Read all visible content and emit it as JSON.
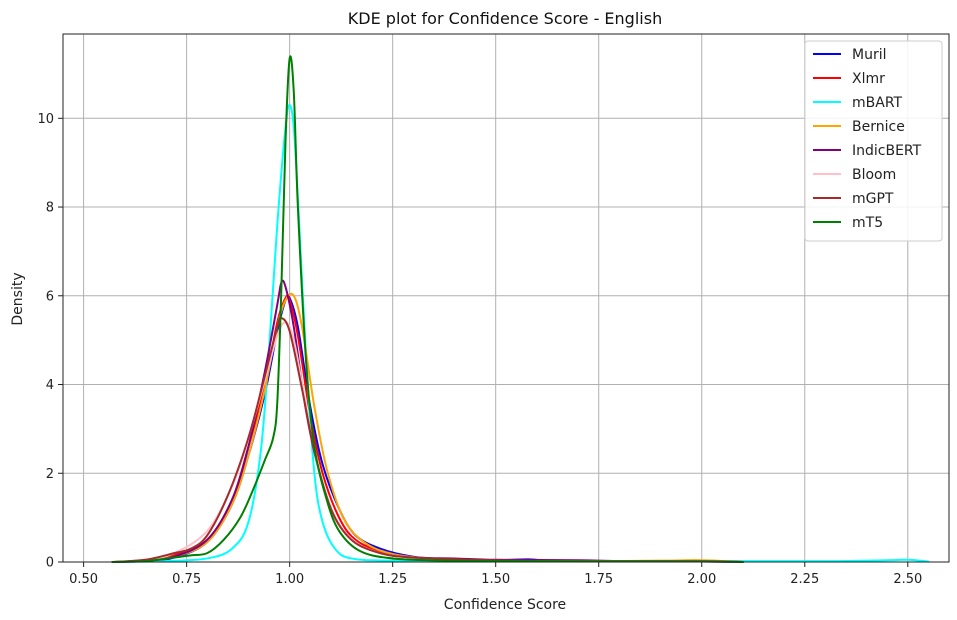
{
  "chart_data": {
    "type": "line",
    "title": "KDE plot for Confidence Score - English",
    "xlabel": "Confidence Score",
    "ylabel": "Density",
    "xlim": [
      0.45,
      2.6
    ],
    "ylim": [
      0,
      11.9
    ],
    "xticks": [
      "0.50",
      "0.75",
      "1.00",
      "1.25",
      "1.50",
      "1.75",
      "2.00",
      "2.25",
      "2.50"
    ],
    "yticks": [
      "0",
      "2",
      "4",
      "6",
      "8",
      "10"
    ],
    "grid": true,
    "legend_position": "top-right",
    "series": [
      {
        "name": "Muril",
        "color": "#0000ff",
        "points": [
          [
            0.57,
            0
          ],
          [
            0.65,
            0.02
          ],
          [
            0.72,
            0.1
          ],
          [
            0.8,
            0.45
          ],
          [
            0.86,
            1.3
          ],
          [
            0.9,
            2.4
          ],
          [
            0.94,
            3.8
          ],
          [
            0.97,
            5.2
          ],
          [
            0.99,
            5.9
          ],
          [
            1.0,
            5.95
          ],
          [
            1.02,
            5.3
          ],
          [
            1.05,
            3.5
          ],
          [
            1.08,
            2.2
          ],
          [
            1.12,
            1.2
          ],
          [
            1.16,
            0.6
          ],
          [
            1.22,
            0.3
          ],
          [
            1.3,
            0.12
          ],
          [
            1.4,
            0.06
          ],
          [
            1.5,
            0.04
          ],
          [
            1.58,
            0.06
          ],
          [
            1.65,
            0.02
          ],
          [
            1.8,
            0.02
          ],
          [
            2.0,
            0.01
          ],
          [
            2.1,
            0
          ]
        ]
      },
      {
        "name": "Xlmr",
        "color": "#ff0000",
        "points": [
          [
            0.57,
            0
          ],
          [
            0.65,
            0.04
          ],
          [
            0.72,
            0.15
          ],
          [
            0.8,
            0.5
          ],
          [
            0.86,
            1.4
          ],
          [
            0.9,
            2.6
          ],
          [
            0.94,
            4.0
          ],
          [
            0.97,
            5.4
          ],
          [
            0.99,
            5.95
          ],
          [
            1.0,
            5.9
          ],
          [
            1.02,
            5.1
          ],
          [
            1.05,
            3.3
          ],
          [
            1.08,
            2.0
          ],
          [
            1.12,
            1.0
          ],
          [
            1.16,
            0.5
          ],
          [
            1.22,
            0.25
          ],
          [
            1.3,
            0.1
          ],
          [
            1.4,
            0.05
          ],
          [
            1.5,
            0.03
          ],
          [
            1.6,
            0.02
          ],
          [
            1.8,
            0.02
          ],
          [
            2.0,
            0.02
          ],
          [
            2.1,
            0
          ]
        ]
      },
      {
        "name": "mBART",
        "color": "#00ffff",
        "points": [
          [
            0.57,
            0
          ],
          [
            0.7,
            0.02
          ],
          [
            0.8,
            0.08
          ],
          [
            0.86,
            0.3
          ],
          [
            0.9,
            0.9
          ],
          [
            0.93,
            2.5
          ],
          [
            0.95,
            4.8
          ],
          [
            0.97,
            7.6
          ],
          [
            0.99,
            9.8
          ],
          [
            1.0,
            10.3
          ],
          [
            1.01,
            9.8
          ],
          [
            1.02,
            8.2
          ],
          [
            1.04,
            4.6
          ],
          [
            1.06,
            2.0
          ],
          [
            1.08,
            0.9
          ],
          [
            1.11,
            0.3
          ],
          [
            1.15,
            0.08
          ],
          [
            1.25,
            0.03
          ],
          [
            1.5,
            0.02
          ],
          [
            2.0,
            0.02
          ],
          [
            2.3,
            0.02
          ],
          [
            2.45,
            0.04
          ],
          [
            2.5,
            0.05
          ],
          [
            2.55,
            0.01
          ]
        ]
      },
      {
        "name": "Bernice",
        "color": "#ffa500",
        "points": [
          [
            0.57,
            0
          ],
          [
            0.65,
            0.03
          ],
          [
            0.72,
            0.12
          ],
          [
            0.8,
            0.45
          ],
          [
            0.86,
            1.3
          ],
          [
            0.9,
            2.4
          ],
          [
            0.94,
            3.9
          ],
          [
            0.97,
            5.3
          ],
          [
            0.99,
            5.9
          ],
          [
            1.01,
            6.0
          ],
          [
            1.03,
            5.3
          ],
          [
            1.06,
            3.5
          ],
          [
            1.09,
            2.1
          ],
          [
            1.13,
            1.0
          ],
          [
            1.18,
            0.45
          ],
          [
            1.25,
            0.18
          ],
          [
            1.35,
            0.07
          ],
          [
            1.5,
            0.04
          ],
          [
            1.7,
            0.02
          ],
          [
            1.9,
            0.03
          ],
          [
            2.0,
            0.04
          ],
          [
            2.1,
            0
          ]
        ]
      },
      {
        "name": "IndicBERT",
        "color": "#800080",
        "points": [
          [
            0.57,
            0
          ],
          [
            0.65,
            0.03
          ],
          [
            0.72,
            0.12
          ],
          [
            0.8,
            0.5
          ],
          [
            0.86,
            1.4
          ],
          [
            0.9,
            2.6
          ],
          [
            0.94,
            4.3
          ],
          [
            0.97,
            5.8
          ],
          [
            0.98,
            6.3
          ],
          [
            0.99,
            6.2
          ],
          [
            1.01,
            5.3
          ],
          [
            1.04,
            3.4
          ],
          [
            1.07,
            2.1
          ],
          [
            1.11,
            1.0
          ],
          [
            1.16,
            0.45
          ],
          [
            1.22,
            0.2
          ],
          [
            1.3,
            0.1
          ],
          [
            1.4,
            0.08
          ],
          [
            1.5,
            0.05
          ],
          [
            1.7,
            0.04
          ],
          [
            1.8,
            0.02
          ],
          [
            2.0,
            0.02
          ],
          [
            2.1,
            0
          ]
        ]
      },
      {
        "name": "Bloom",
        "color": "#ffc0cb",
        "points": [
          [
            0.57,
            0
          ],
          [
            0.65,
            0.05
          ],
          [
            0.72,
            0.2
          ],
          [
            0.8,
            0.7
          ],
          [
            0.86,
            1.7
          ],
          [
            0.9,
            2.8
          ],
          [
            0.94,
            4.1
          ],
          [
            0.97,
            5.1
          ],
          [
            0.99,
            5.4
          ],
          [
            1.01,
            5.0
          ],
          [
            1.04,
            3.5
          ],
          [
            1.07,
            2.1
          ],
          [
            1.11,
            1.0
          ],
          [
            1.16,
            0.45
          ],
          [
            1.22,
            0.2
          ],
          [
            1.3,
            0.1
          ],
          [
            1.45,
            0.04
          ],
          [
            1.6,
            0.02
          ],
          [
            1.8,
            0.02
          ],
          [
            2.0,
            0.02
          ],
          [
            2.1,
            0
          ]
        ]
      },
      {
        "name": "mGPT",
        "color": "#a52a2a",
        "points": [
          [
            0.57,
            0
          ],
          [
            0.65,
            0.05
          ],
          [
            0.72,
            0.2
          ],
          [
            0.76,
            0.3
          ],
          [
            0.8,
            0.6
          ],
          [
            0.85,
            1.5
          ],
          [
            0.9,
            2.8
          ],
          [
            0.94,
            4.2
          ],
          [
            0.97,
            5.3
          ],
          [
            0.98,
            5.5
          ],
          [
            1.0,
            5.2
          ],
          [
            1.03,
            3.9
          ],
          [
            1.06,
            2.5
          ],
          [
            1.1,
            1.2
          ],
          [
            1.15,
            0.5
          ],
          [
            1.22,
            0.2
          ],
          [
            1.3,
            0.1
          ],
          [
            1.45,
            0.05
          ],
          [
            1.6,
            0.02
          ],
          [
            1.8,
            0.02
          ],
          [
            2.0,
            0.02
          ],
          [
            2.1,
            0
          ]
        ]
      },
      {
        "name": "mT5",
        "color": "#008000",
        "points": [
          [
            0.57,
            0
          ],
          [
            0.65,
            0.02
          ],
          [
            0.72,
            0.1
          ],
          [
            0.76,
            0.15
          ],
          [
            0.8,
            0.2
          ],
          [
            0.84,
            0.5
          ],
          [
            0.88,
            1.0
          ],
          [
            0.91,
            1.6
          ],
          [
            0.94,
            2.3
          ],
          [
            0.96,
            2.8
          ],
          [
            0.97,
            3.6
          ],
          [
            0.98,
            6.2
          ],
          [
            0.99,
            9.5
          ],
          [
            1.0,
            11.35
          ],
          [
            1.01,
            10.6
          ],
          [
            1.02,
            8.0
          ],
          [
            1.04,
            4.5
          ],
          [
            1.06,
            2.6
          ],
          [
            1.09,
            1.4
          ],
          [
            1.12,
            0.7
          ],
          [
            1.17,
            0.25
          ],
          [
            1.25,
            0.08
          ],
          [
            1.4,
            0.03
          ],
          [
            1.6,
            0.02
          ],
          [
            2.0,
            0.01
          ],
          [
            2.1,
            0
          ]
        ]
      }
    ]
  }
}
